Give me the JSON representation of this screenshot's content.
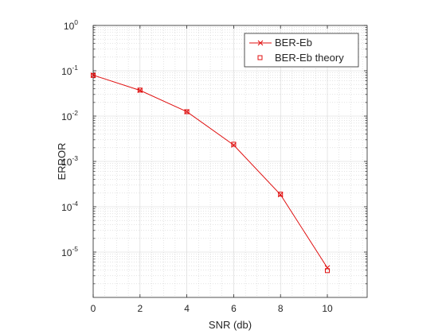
{
  "chart_data": {
    "type": "line",
    "title": "",
    "xlabel": "SNR (db)",
    "ylabel": "ERROR",
    "xlim": [
      0,
      11.7
    ],
    "ylim": [
      1e-06,
      1
    ],
    "yscale": "log",
    "grid": "major and minor",
    "legend_position": "top-right",
    "x_ticks": [
      0,
      2,
      4,
      6,
      8,
      10
    ],
    "y_ticks": [
      {
        "value": 1e-05,
        "mantissa": "10",
        "exp": "-5"
      },
      {
        "value": 0.0001,
        "mantissa": "10",
        "exp": "-4"
      },
      {
        "value": 0.001,
        "mantissa": "10",
        "exp": "-3"
      },
      {
        "value": 0.01,
        "mantissa": "10",
        "exp": "-2"
      },
      {
        "value": 0.1,
        "mantissa": "10",
        "exp": "-1"
      },
      {
        "value": 1,
        "mantissa": "10",
        "exp": "0"
      }
    ],
    "series": [
      {
        "name": "BER-Eb",
        "color": "#e01010",
        "marker": "x",
        "line": "solid",
        "x": [
          0,
          2,
          4,
          6,
          8,
          10
        ],
        "y": [
          0.08,
          0.037,
          0.0125,
          0.0023,
          0.000185,
          4.5e-06
        ]
      },
      {
        "name": "BER-Eb theory",
        "color": "#e01010",
        "marker": "square",
        "line": "none",
        "x": [
          0,
          2,
          4,
          6,
          8,
          10
        ],
        "y": [
          0.079,
          0.0375,
          0.0125,
          0.0024,
          0.00019,
          3.9e-06
        ]
      }
    ]
  }
}
